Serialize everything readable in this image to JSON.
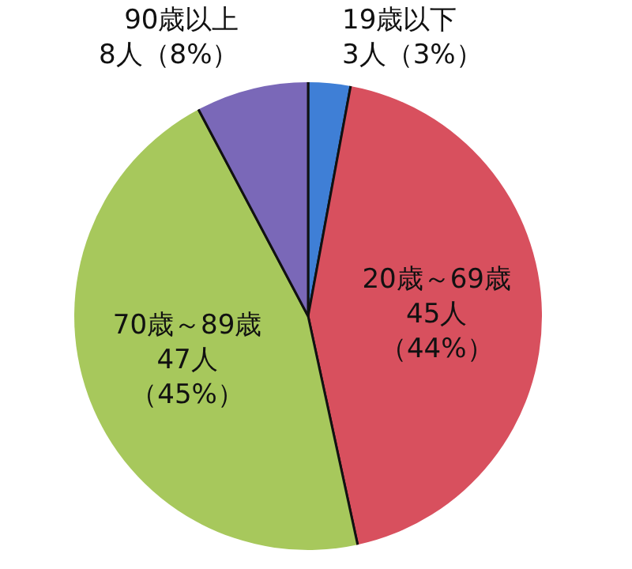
{
  "chart_data": {
    "type": "pie",
    "categories": [
      "19歳以下",
      "20歳～69歳",
      "70歳～89歳",
      "90歳以上"
    ],
    "values": [
      3,
      45,
      47,
      8
    ],
    "value_labels": [
      "3人（3%）",
      "45人（44%）",
      "47人（45%）",
      "8人（8%）"
    ],
    "colors": [
      "#3f7fd6",
      "#d8505e",
      "#a7c85c",
      "#7a68b8"
    ]
  }
}
